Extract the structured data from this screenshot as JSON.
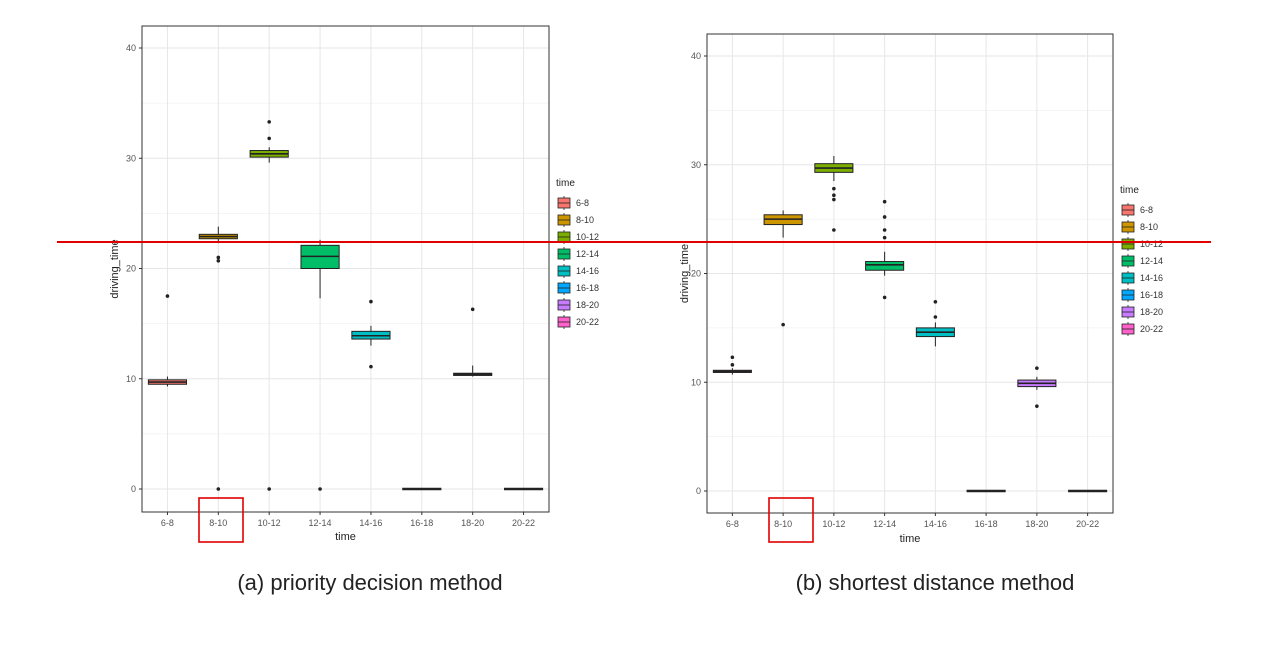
{
  "panels": [
    {
      "caption": "(a) priority decision method",
      "xlabel": "time",
      "ylabel": "driving_time",
      "legend_title": "time"
    },
    {
      "caption": "(b) shortest distance method",
      "xlabel": "time",
      "ylabel": "driving_time",
      "legend_title": "time"
    }
  ],
  "annotations": {
    "reference_line_color": "#e00000",
    "highlight_box_color": "#e00000",
    "highlight_category": "8-10"
  },
  "chart_data": [
    {
      "type": "box",
      "xlabel": "time",
      "ylabel": "driving_time",
      "ylim": [
        -2,
        42
      ],
      "yticks": [
        0,
        10,
        20,
        30,
        40
      ],
      "grid": true,
      "legend_position": "right",
      "categories": [
        "6-8",
        "8-10",
        "10-12",
        "12-14",
        "14-16",
        "16-18",
        "18-20",
        "20-22"
      ],
      "colors": [
        "#F8766D",
        "#CD9600",
        "#7CAE00",
        "#00BE67",
        "#00BFC4",
        "#00A9FF",
        "#C77CFF",
        "#FF61CC"
      ],
      "boxes": [
        {
          "q1": 9.5,
          "median": 9.7,
          "q3": 9.9,
          "whisker_low": 9.3,
          "whisker_high": 10.2,
          "outliers": [
            17.5
          ]
        },
        {
          "q1": 22.7,
          "median": 22.9,
          "q3": 23.1,
          "whisker_low": 22.3,
          "whisker_high": 23.8,
          "outliers": [
            21.0,
            20.7,
            0.0
          ]
        },
        {
          "q1": 30.1,
          "median": 30.4,
          "q3": 30.7,
          "whisker_low": 29.6,
          "whisker_high": 31.0,
          "outliers": [
            33.3,
            31.8,
            0.0
          ]
        },
        {
          "q1": 20.0,
          "median": 21.1,
          "q3": 22.1,
          "whisker_low": 17.3,
          "whisker_high": 22.6,
          "outliers": [
            0.0
          ]
        },
        {
          "q1": 13.6,
          "median": 13.9,
          "q3": 14.3,
          "whisker_low": 13.0,
          "whisker_high": 14.8,
          "outliers": [
            17.0,
            11.1
          ]
        },
        {
          "q1": 0.0,
          "median": 0.0,
          "q3": 0.0,
          "whisker_low": 0.0,
          "whisker_high": 0.0,
          "outliers": []
        },
        {
          "q1": 10.3,
          "median": 10.4,
          "q3": 10.5,
          "whisker_low": 10.2,
          "whisker_high": 11.2,
          "outliers": [
            16.3
          ]
        },
        {
          "q1": 0.0,
          "median": 0.0,
          "q3": 0.0,
          "whisker_low": 0.0,
          "whisker_high": 0.0,
          "outliers": []
        }
      ]
    },
    {
      "type": "box",
      "xlabel": "time",
      "ylabel": "driving_time",
      "ylim": [
        -2,
        42
      ],
      "yticks": [
        0,
        10,
        20,
        30,
        40
      ],
      "grid": true,
      "legend_position": "right",
      "categories": [
        "6-8",
        "8-10",
        "10-12",
        "12-14",
        "14-16",
        "16-18",
        "18-20",
        "20-22"
      ],
      "colors": [
        "#F8766D",
        "#CD9600",
        "#7CAE00",
        "#00BE67",
        "#00BFC4",
        "#00A9FF",
        "#C77CFF",
        "#FF61CC"
      ],
      "boxes": [
        {
          "q1": 10.9,
          "median": 11.0,
          "q3": 11.1,
          "whisker_low": 10.7,
          "whisker_high": 11.3,
          "outliers": [
            12.3,
            11.6
          ]
        },
        {
          "q1": 24.5,
          "median": 25.0,
          "q3": 25.4,
          "whisker_low": 23.3,
          "whisker_high": 25.8,
          "outliers": [
            15.3
          ]
        },
        {
          "q1": 29.3,
          "median": 29.7,
          "q3": 30.1,
          "whisker_low": 28.5,
          "whisker_high": 30.8,
          "outliers": [
            27.8,
            27.2,
            26.8,
            24.0
          ]
        },
        {
          "q1": 20.3,
          "median": 20.8,
          "q3": 21.1,
          "whisker_low": 19.8,
          "whisker_high": 22.0,
          "outliers": [
            26.6,
            25.2,
            24.0,
            23.3,
            17.8
          ]
        },
        {
          "q1": 14.2,
          "median": 14.6,
          "q3": 15.0,
          "whisker_low": 13.3,
          "whisker_high": 15.5,
          "outliers": [
            17.4,
            16.0
          ]
        },
        {
          "q1": 0.0,
          "median": 0.0,
          "q3": 0.0,
          "whisker_low": 0.0,
          "whisker_high": 0.0,
          "outliers": []
        },
        {
          "q1": 9.6,
          "median": 9.9,
          "q3": 10.2,
          "whisker_low": 9.3,
          "whisker_high": 10.5,
          "outliers": [
            11.3,
            7.8
          ]
        },
        {
          "q1": 0.0,
          "median": 0.0,
          "q3": 0.0,
          "whisker_low": 0.0,
          "whisker_high": 0.0,
          "outliers": []
        }
      ]
    }
  ]
}
